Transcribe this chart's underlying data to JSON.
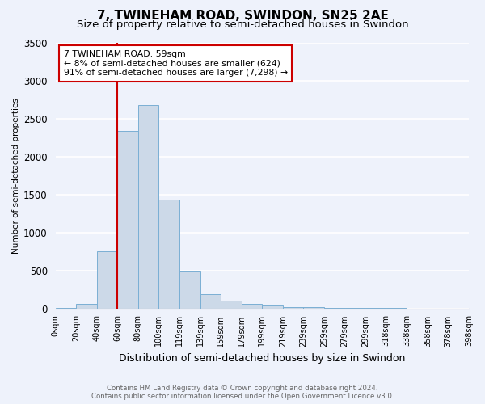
{
  "title": "7, TWINEHAM ROAD, SWINDON, SN25 2AE",
  "subtitle": "Size of property relative to semi-detached houses in Swindon",
  "xlabel": "Distribution of semi-detached houses by size in Swindon",
  "ylabel": "Number of semi-detached properties",
  "footer_line1": "Contains HM Land Registry data © Crown copyright and database right 2024.",
  "footer_line2": "Contains public sector information licensed under the Open Government Licence v3.0.",
  "bins": [
    "0sqm",
    "20sqm",
    "40sqm",
    "60sqm",
    "80sqm",
    "100sqm",
    "119sqm",
    "139sqm",
    "159sqm",
    "179sqm",
    "199sqm",
    "219sqm",
    "239sqm",
    "259sqm",
    "279sqm",
    "299sqm",
    "318sqm",
    "338sqm",
    "358sqm",
    "378sqm",
    "398sqm"
  ],
  "values": [
    5,
    55,
    750,
    2340,
    2680,
    1430,
    490,
    190,
    100,
    65,
    40,
    22,
    14,
    8,
    5,
    3,
    2,
    1,
    0,
    0
  ],
  "bar_color": "#ccd9e8",
  "bar_edge_color": "#7aafd4",
  "property_line_color": "#cc0000",
  "annotation_text": "7 TWINEHAM ROAD: 59sqm\n← 8% of semi-detached houses are smaller (624)\n91% of semi-detached houses are larger (7,298) →",
  "annotation_box_color": "#cc0000",
  "ylim": [
    0,
    3500
  ],
  "yticks": [
    0,
    500,
    1000,
    1500,
    2000,
    2500,
    3000,
    3500
  ],
  "background_color": "#eef2fb",
  "grid_color": "#ffffff",
  "title_fontsize": 11,
  "subtitle_fontsize": 9.5,
  "figsize": [
    6.0,
    5.0
  ],
  "dpi": 100
}
